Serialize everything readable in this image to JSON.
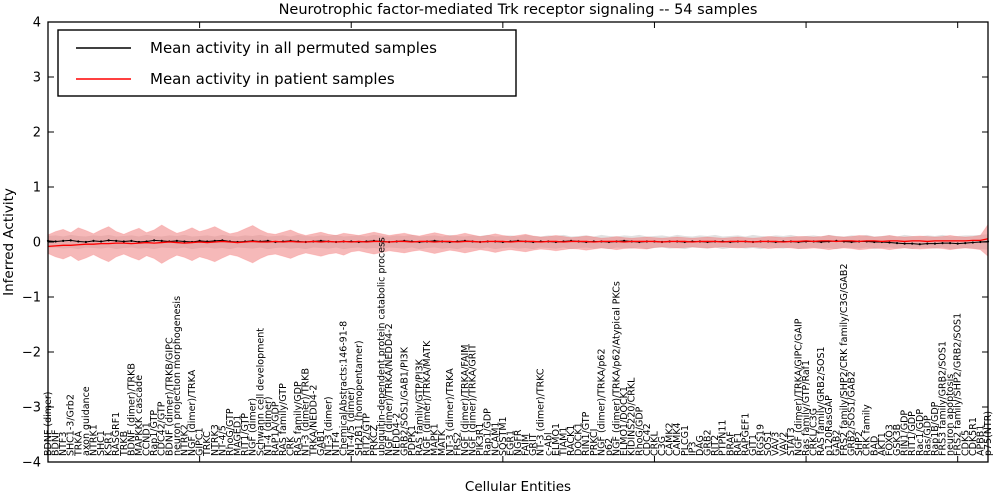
{
  "figure": {
    "title": "Neurotrophic factor-mediated Trk receptor signaling -- 54 samples",
    "xlabel": "Cellular Entities",
    "ylabel": "Inferred Activity"
  },
  "legend": {
    "items": [
      {
        "label": "Mean activity in all permuted samples",
        "color": "#000000"
      },
      {
        "label": "Mean activity in patient samples",
        "color": "#ff0000"
      }
    ]
  },
  "chart_data": {
    "type": "line",
    "title": "Neurotrophic factor-mediated Trk receptor signaling -- 54 samples",
    "xlabel": "Cellular Entities",
    "ylabel": "Inferred Activity",
    "ylim": [
      -4,
      4
    ],
    "yticks": [
      -4,
      -3,
      -2,
      -1,
      0,
      1,
      2,
      3,
      4
    ],
    "x_major_tick_indices": [
      0,
      20,
      40,
      60,
      80,
      100,
      120
    ],
    "grid": false,
    "legend_position": "upper left",
    "band_colors": {
      "permuted": "#c8c8c8",
      "patient": "#f08080"
    },
    "categories": [
      "BDNF (dimer)",
      "BDNF",
      "NTF3",
      "SHC1-3/Grb2",
      "TRKA",
      "axon guidance",
      "NTRK1",
      "SHC1",
      "KSR1",
      "RASGRF1",
      "TRKB",
      "BDNF (dimer)/TRKB",
      "MAPKKK cascade",
      "CCND1",
      "Rap1/GTP",
      "CDC42/GTP",
      "BDNF (dimer)/TRKB/GIPC",
      "neuron projection morphogenesis",
      "NTRK2",
      "NGF (dimer)/TRKA",
      "GIPC1",
      "TRKC",
      "NTRK3",
      "NT-4/5",
      "RhoG/GTP",
      "MAGED1",
      "RIT1/GTP",
      "NGF (dimer)",
      "Schwann cell development",
      "NT-4 (dimer)",
      "RAP1A/GDP",
      "RAS family/GTP",
      "CRK",
      "RAS family/GDP",
      "NT-3 (dimer)/TRKB",
      "TRKA/NEDD4-2",
      "GAB1",
      "NT-3 (dimer)",
      "NTF4",
      "ChemicalAbstracts:146-91-8",
      "NT-4/5 (dimer)",
      "SH2B1 (homopentamer)",
      "RIT2/GTP",
      "PRKCZ",
      "ubiquitin-dependent protein catabolic process",
      "NGF (dimer)/TRKA/NEDD4-2",
      "NEDD4-2",
      "GRB2/SOS1/GAB1/PI3K",
      "PDPK1",
      "RAS family/GTP/PI3K",
      "NGF (dimer)/TRKA/MATK",
      "MAPK1",
      "MATK",
      "NT-3 (dimer)/TRKA",
      "FRS2",
      "NGF (dimer)/TRKA/FAIM",
      "NGF (dimer)/TRKA/GRIT",
      "PIK3R1",
      "Rap1/GDP",
      "NCAM1",
      "SQSTM1",
      "EGR1",
      "NGFR",
      "FAIM",
      "GRIT",
      "NT-3 (dimer)/TRKC",
      "c-Abl",
      "ELMO1",
      "TIAM1",
      "RACK1",
      "DOCK1",
      "RIN1/GTP",
      "PRKCI",
      "NGF (dimer)/TRKA/p62",
      "p62",
      "NGF (dimer)/TRKA/p62/Atypical PKCs",
      "ELMO1/DOCK1",
      "KIDINS220/CRKL",
      "RhoG/GDP",
      "CDC42",
      "CRKL",
      "C3G",
      "CAMK2",
      "CAMK4",
      "PLCG1",
      "IP3",
      "DAG",
      "GRB2",
      "RIT2",
      "PTPN11",
      "BRAF",
      "RAF1",
      "RAPGEF1",
      "GIT1",
      "RGS19",
      "SOS1",
      "VAV3",
      "VAV2",
      "STAT3",
      "NGF (dimer)/TRKA/GIPC/GAIP",
      "Ras family/GTP/Raf1",
      "CRKL/C3G",
      "RAS family/GRB2/SOS1",
      "p120RasGAP",
      "GAB2",
      "FRS2 family/SHP2/CRK family/C3G/GAB2",
      "GRB2/SOS1/GAB2",
      "SHP2",
      "CRK family",
      "BAD",
      "AKT1",
      "FOXO3",
      "GSK3B",
      "RIN1/GDP",
      "RIT1/GDP",
      "Rac1/GDP",
      "Ras/GDP",
      "Rap1B/GDP",
      "FRS3 family/GRB2/SOS1",
      "neuron apoptosis",
      "FRS2 family/SHP2/GRB2/SOS1",
      "CDK5",
      "CDK5R1",
      "APBB1",
      "p75(NTR)"
    ],
    "series": [
      {
        "name": "Mean activity in all permuted samples",
        "color": "#000000",
        "values": [
          0.02,
          0.01,
          0.02,
          0.03,
          0.01,
          0.0,
          0.02,
          0.01,
          0.03,
          0.02,
          0.01,
          0.02,
          0.0,
          0.01,
          0.03,
          0.02,
          0.01,
          0.02,
          0.01,
          0.0,
          0.02,
          0.01,
          0.02,
          0.03,
          0.01,
          0.0,
          0.01,
          0.02,
          0.01,
          0.02,
          0.0,
          0.01,
          0.02,
          0.01,
          0.0,
          0.01,
          0.02,
          0.01,
          0.0,
          0.01,
          0.01,
          0.0,
          0.01,
          0.02,
          0.01,
          0.0,
          0.01,
          0.02,
          0.01,
          0.0,
          0.01,
          0.02,
          0.01,
          0.0,
          0.01,
          0.02,
          0.01,
          0.0,
          0.01,
          0.01,
          0.0,
          0.01,
          0.02,
          0.01,
          0.0,
          0.01,
          0.01,
          0.0,
          0.01,
          0.02,
          0.01,
          0.0,
          0.01,
          0.01,
          0.0,
          0.01,
          0.02,
          0.01,
          0.0,
          0.01,
          0.01,
          0.0,
          0.01,
          0.01,
          0.0,
          0.01,
          0.01,
          0.0,
          0.01,
          0.01,
          0.0,
          0.01,
          0.01,
          0.0,
          0.01,
          0.01,
          0.0,
          0.01,
          0.01,
          0.0,
          0.01,
          0.01,
          0.0,
          0.01,
          0.02,
          0.01,
          0.0,
          0.01,
          0.01,
          0.0,
          0.0,
          -0.01,
          -0.02,
          -0.03,
          -0.03,
          -0.04,
          -0.03,
          -0.03,
          -0.02,
          -0.02,
          -0.03,
          -0.02,
          -0.01,
          0.0,
          0.01
        ],
        "band_high": [
          0.11,
          0.12,
          0.1,
          0.13,
          0.11,
          0.1,
          0.12,
          0.11,
          0.13,
          0.1,
          0.11,
          0.12,
          0.1,
          0.13,
          0.11,
          0.1,
          0.12,
          0.11,
          0.13,
          0.1,
          0.11,
          0.12,
          0.1,
          0.13,
          0.11,
          0.1,
          0.12,
          0.11,
          0.13,
          0.1,
          0.11,
          0.12,
          0.1,
          0.13,
          0.11,
          0.1,
          0.12,
          0.11,
          0.13,
          0.1,
          0.11,
          0.12,
          0.1,
          0.13,
          0.11,
          0.1,
          0.12,
          0.11,
          0.13,
          0.1,
          0.11,
          0.12,
          0.1,
          0.13,
          0.11,
          0.1,
          0.12,
          0.11,
          0.13,
          0.1,
          0.11,
          0.12,
          0.1,
          0.13,
          0.11,
          0.1,
          0.12,
          0.11,
          0.13,
          0.1,
          0.11,
          0.12,
          0.1,
          0.13,
          0.11,
          0.1,
          0.12,
          0.11,
          0.13,
          0.1,
          0.11,
          0.12,
          0.1,
          0.13,
          0.11,
          0.1,
          0.12,
          0.11,
          0.13,
          0.1,
          0.11,
          0.12,
          0.1,
          0.13,
          0.11,
          0.1,
          0.12,
          0.11,
          0.13,
          0.1,
          0.11,
          0.12,
          0.1,
          0.13,
          0.11,
          0.1,
          0.12,
          0.11,
          0.13,
          0.1,
          0.11,
          0.12,
          0.1,
          0.13,
          0.11,
          0.1,
          0.12,
          0.11,
          0.13,
          0.1,
          0.11,
          0.12,
          0.12,
          0.13,
          0.14
        ],
        "band_low": [
          -0.11,
          -0.1,
          -0.12,
          -0.11,
          -0.13,
          -0.1,
          -0.11,
          -0.12,
          -0.1,
          -0.13,
          -0.11,
          -0.1,
          -0.12,
          -0.11,
          -0.13,
          -0.1,
          -0.11,
          -0.12,
          -0.1,
          -0.13,
          -0.11,
          -0.1,
          -0.12,
          -0.11,
          -0.13,
          -0.1,
          -0.11,
          -0.12,
          -0.1,
          -0.13,
          -0.11,
          -0.1,
          -0.12,
          -0.11,
          -0.13,
          -0.1,
          -0.11,
          -0.12,
          -0.1,
          -0.13,
          -0.11,
          -0.1,
          -0.12,
          -0.11,
          -0.13,
          -0.1,
          -0.11,
          -0.12,
          -0.1,
          -0.13,
          -0.11,
          -0.1,
          -0.12,
          -0.11,
          -0.13,
          -0.1,
          -0.11,
          -0.12,
          -0.1,
          -0.13,
          -0.11,
          -0.1,
          -0.12,
          -0.11,
          -0.13,
          -0.1,
          -0.11,
          -0.12,
          -0.1,
          -0.13,
          -0.11,
          -0.1,
          -0.12,
          -0.11,
          -0.13,
          -0.1,
          -0.11,
          -0.12,
          -0.1,
          -0.13,
          -0.11,
          -0.1,
          -0.12,
          -0.11,
          -0.13,
          -0.1,
          -0.11,
          -0.12,
          -0.1,
          -0.13,
          -0.11,
          -0.1,
          -0.12,
          -0.11,
          -0.13,
          -0.1,
          -0.11,
          -0.12,
          -0.1,
          -0.13,
          -0.11,
          -0.1,
          -0.12,
          -0.11,
          -0.13,
          -0.1,
          -0.11,
          -0.12,
          -0.1,
          -0.13,
          -0.11,
          -0.1,
          -0.12,
          -0.11,
          -0.13,
          -0.1,
          -0.11,
          -0.12,
          -0.1,
          -0.13,
          -0.12,
          -0.11,
          -0.12,
          -0.13,
          -0.14
        ]
      },
      {
        "name": "Mean activity in patient samples",
        "color": "#ff0000",
        "values": [
          -0.08,
          -0.07,
          -0.06,
          -0.06,
          -0.05,
          -0.04,
          -0.04,
          -0.03,
          -0.03,
          -0.02,
          -0.02,
          -0.03,
          -0.02,
          -0.01,
          -0.02,
          -0.01,
          0.0,
          -0.01,
          -0.02,
          -0.01,
          0.0,
          -0.01,
          0.0,
          0.01,
          0.0,
          -0.01,
          0.0,
          0.01,
          0.0,
          0.0,
          0.01,
          0.0,
          0.01,
          0.0,
          0.0,
          0.01,
          0.0,
          0.01,
          0.0,
          0.01,
          0.0,
          0.01,
          0.0,
          0.01,
          0.01,
          0.0,
          0.01,
          0.01,
          0.0,
          0.01,
          0.01,
          0.0,
          0.01,
          0.01,
          0.0,
          0.01,
          0.01,
          0.0,
          0.01,
          0.01,
          0.01,
          0.0,
          0.01,
          0.01,
          0.01,
          0.0,
          0.01,
          0.01,
          0.0,
          0.01,
          0.01,
          0.01,
          0.0,
          0.01,
          0.01,
          0.01,
          0.0,
          0.01,
          0.01,
          0.01,
          0.01,
          0.0,
          0.01,
          0.01,
          0.01,
          0.0,
          0.01,
          0.01,
          0.01,
          0.0,
          0.01,
          0.01,
          0.01,
          0.0,
          0.01,
          0.01,
          0.01,
          0.0,
          0.01,
          0.01,
          0.02,
          0.01,
          0.02,
          0.02,
          0.01,
          0.02,
          0.02,
          0.01,
          0.02,
          0.02,
          0.01,
          0.02,
          0.02,
          0.01,
          0.02,
          0.02,
          0.01,
          0.02,
          0.02,
          0.02,
          0.02,
          0.02,
          0.03,
          0.03,
          0.06
        ],
        "band_high": [
          0.13,
          0.19,
          0.23,
          0.17,
          0.26,
          0.21,
          0.15,
          0.22,
          0.28,
          0.19,
          0.14,
          0.2,
          0.25,
          0.17,
          0.22,
          0.31,
          0.23,
          0.16,
          0.2,
          0.26,
          0.19,
          0.23,
          0.28,
          0.21,
          0.15,
          0.18,
          0.24,
          0.3,
          0.22,
          0.16,
          0.14,
          0.18,
          0.22,
          0.16,
          0.12,
          0.15,
          0.18,
          0.14,
          0.12,
          0.16,
          0.14,
          0.12,
          0.15,
          0.18,
          0.15,
          0.12,
          0.14,
          0.16,
          0.13,
          0.11,
          0.14,
          0.17,
          0.14,
          0.11,
          0.13,
          0.16,
          0.13,
          0.1,
          0.12,
          0.15,
          0.12,
          0.1,
          0.12,
          0.14,
          0.11,
          0.09,
          0.1,
          0.12,
          0.1,
          0.08,
          0.09,
          0.11,
          0.09,
          0.07,
          0.08,
          0.1,
          0.08,
          0.07,
          0.08,
          0.09,
          0.08,
          0.07,
          0.08,
          0.09,
          0.08,
          0.07,
          0.08,
          0.09,
          0.08,
          0.07,
          0.08,
          0.09,
          0.08,
          0.07,
          0.08,
          0.1,
          0.09,
          0.08,
          0.09,
          0.1,
          0.1,
          0.09,
          0.1,
          0.12,
          0.1,
          0.09,
          0.1,
          0.12,
          0.11,
          0.09,
          0.1,
          0.12,
          0.1,
          0.09,
          0.1,
          0.11,
          0.1,
          0.09,
          0.1,
          0.12,
          0.1,
          0.09,
          0.1,
          0.12,
          0.32
        ],
        "band_low": [
          -0.21,
          -0.27,
          -0.31,
          -0.25,
          -0.34,
          -0.29,
          -0.23,
          -0.3,
          -0.36,
          -0.27,
          -0.22,
          -0.28,
          -0.33,
          -0.25,
          -0.3,
          -0.39,
          -0.31,
          -0.24,
          -0.28,
          -0.34,
          -0.27,
          -0.31,
          -0.36,
          -0.29,
          -0.23,
          -0.26,
          -0.32,
          -0.38,
          -0.3,
          -0.24,
          -0.22,
          -0.26,
          -0.3,
          -0.24,
          -0.2,
          -0.23,
          -0.26,
          -0.22,
          -0.2,
          -0.24,
          -0.18,
          -0.16,
          -0.19,
          -0.22,
          -0.19,
          -0.16,
          -0.18,
          -0.2,
          -0.17,
          -0.15,
          -0.18,
          -0.21,
          -0.18,
          -0.15,
          -0.17,
          -0.2,
          -0.17,
          -0.14,
          -0.16,
          -0.19,
          -0.16,
          -0.14,
          -0.16,
          -0.18,
          -0.15,
          -0.13,
          -0.14,
          -0.16,
          -0.14,
          -0.12,
          -0.13,
          -0.15,
          -0.13,
          -0.11,
          -0.12,
          -0.14,
          -0.12,
          -0.11,
          -0.12,
          -0.13,
          -0.1,
          -0.09,
          -0.1,
          -0.11,
          -0.1,
          -0.09,
          -0.1,
          -0.11,
          -0.1,
          -0.09,
          -0.1,
          -0.11,
          -0.1,
          -0.09,
          -0.1,
          -0.12,
          -0.11,
          -0.1,
          -0.11,
          -0.12,
          -0.12,
          -0.11,
          -0.12,
          -0.14,
          -0.12,
          -0.11,
          -0.12,
          -0.14,
          -0.13,
          -0.11,
          -0.12,
          -0.14,
          -0.12,
          -0.11,
          -0.12,
          -0.13,
          -0.12,
          -0.11,
          -0.12,
          -0.14,
          -0.12,
          -0.11,
          -0.12,
          -0.14,
          -0.26
        ]
      }
    ]
  }
}
